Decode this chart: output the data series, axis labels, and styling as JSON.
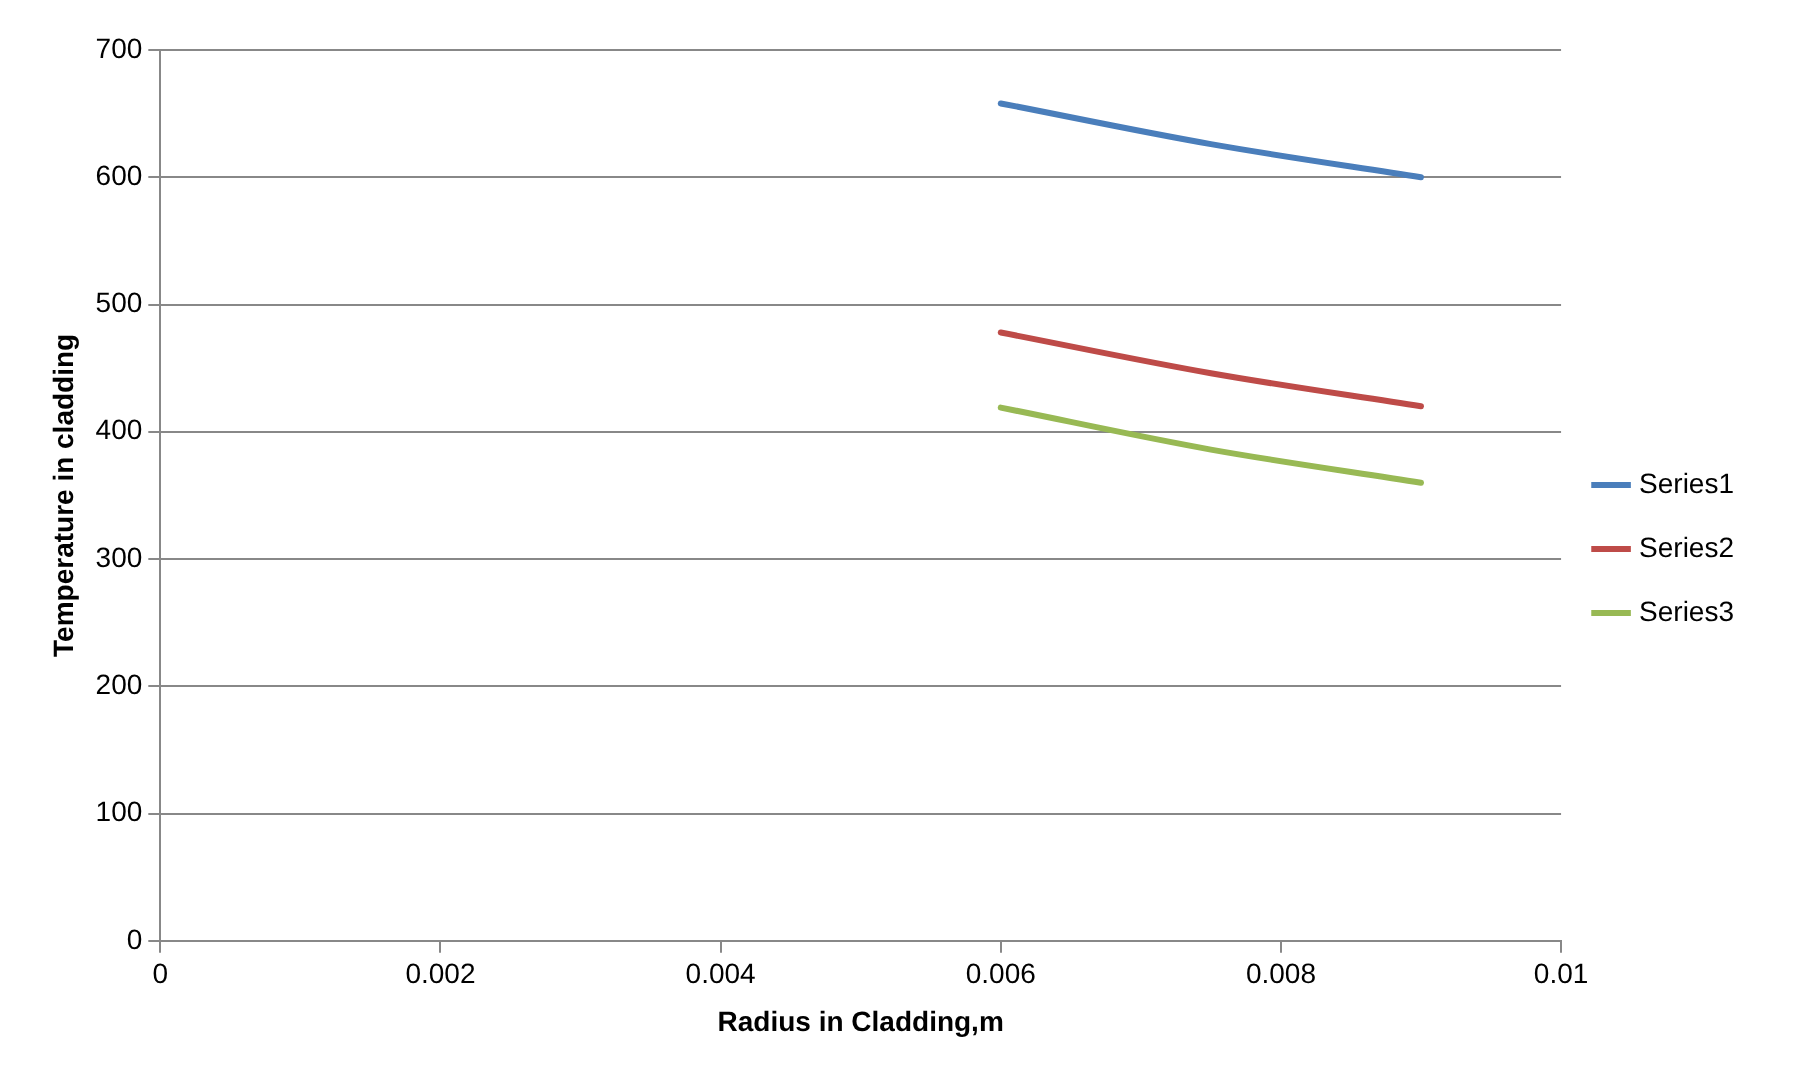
{
  "chart_data": {
    "type": "line",
    "xlabel": "Radius in Cladding,m",
    "ylabel": "Temperature in cladding",
    "x": [
      0.006,
      0.0075,
      0.009
    ],
    "series": [
      {
        "name": "Series1",
        "color": "#4a7ebb",
        "values": [
          658,
          626,
          600
        ]
      },
      {
        "name": "Series2",
        "color": "#be4b48",
        "values": [
          478,
          446,
          420
        ]
      },
      {
        "name": "Series3",
        "color": "#98b954",
        "values": [
          419,
          386,
          360
        ]
      }
    ],
    "xlim": [
      0,
      0.01
    ],
    "xticks": [
      0,
      0.002,
      0.004,
      0.006,
      0.008,
      0.01
    ],
    "ylim": [
      0,
      700
    ],
    "yticks": [
      0,
      100,
      200,
      300,
      400,
      500,
      600,
      700
    ],
    "grid": "y",
    "legend": "right",
    "marker": "none",
    "line_style": "solid"
  }
}
